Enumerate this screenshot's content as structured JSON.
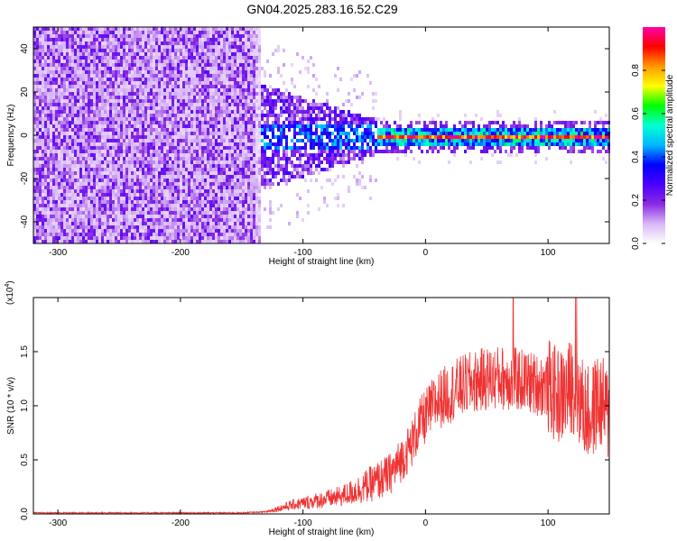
{
  "figure": {
    "title": "GN04.2025.283.16.52.C29"
  },
  "chart_data": [
    {
      "type": "heatmap",
      "title": "GN04.2025.283.16.52.C29",
      "xlabel": "Height of straight line (km)",
      "ylabel": "Frequency (Hz)",
      "xlim": [
        -320,
        150
      ],
      "ylim": [
        -50,
        50
      ],
      "xticks": [
        -300,
        -200,
        -100,
        0,
        100
      ],
      "yticks": [
        -40,
        -20,
        0,
        20,
        40
      ],
      "colorbar": {
        "label": "Normalized spectral amplitude",
        "ticks": [
          0.0,
          0.2,
          0.4,
          0.6,
          0.8
        ],
        "range": [
          0,
          1
        ],
        "colormap": [
          "#ffffff",
          "#d8b8f8",
          "#8a2be2",
          "#4b00ff",
          "#0000ff",
          "#00b8ff",
          "#00ffd0",
          "#00ff00",
          "#ffff00",
          "#ff9900",
          "#ff0000",
          "#ff00aa"
        ]
      },
      "regions": [
        {
          "x": [
            -320,
            -135
          ],
          "freq": [
            -50,
            50
          ],
          "level": "0.05-0.25",
          "description": "broadband noise"
        },
        {
          "x": [
            -140,
            -40
          ],
          "freq": [
            -25,
            25
          ],
          "level": "0.1-0.45",
          "description": "spreading signal"
        },
        {
          "x": [
            -40,
            150
          ],
          "freq": [
            -3,
            3
          ],
          "level": "0.6-1.0",
          "description": "narrow carrier at 0 Hz"
        }
      ]
    },
    {
      "type": "line",
      "xlabel": "Height of straight line (km)",
      "ylabel": "SNR (10 * v/v)",
      "y_multiplier_label": "(x10",
      "y_multiplier_exp": "4",
      "xlim": [
        -320,
        150
      ],
      "ylim": [
        0,
        2.0
      ],
      "xticks": [
        -300,
        -200,
        -100,
        0,
        100
      ],
      "yticks": [
        0.0,
        0.5,
        1.0,
        1.5
      ],
      "series": [
        {
          "color": "#ee3333",
          "x": [
            -320,
            -300,
            -250,
            -200,
            -150,
            -130,
            -120,
            -110,
            -100,
            -90,
            -80,
            -70,
            -60,
            -50,
            -40,
            -35,
            -30,
            -25,
            -20,
            -15,
            -10,
            -5,
            0,
            5,
            10,
            20,
            30,
            40,
            50,
            60,
            70,
            80,
            90,
            100,
            105,
            110,
            115,
            120,
            125,
            130,
            135,
            140,
            145,
            150
          ],
          "y": [
            0.01,
            0.01,
            0.01,
            0.01,
            0.01,
            0.02,
            0.05,
            0.08,
            0.1,
            0.12,
            0.14,
            0.16,
            0.2,
            0.25,
            0.3,
            0.33,
            0.36,
            0.42,
            0.5,
            0.58,
            0.68,
            0.82,
            0.9,
            0.98,
            1.05,
            1.12,
            1.18,
            1.22,
            1.25,
            1.26,
            1.25,
            1.23,
            1.2,
            1.18,
            1.12,
            1.08,
            1.12,
            1.2,
            1.1,
            0.95,
            0.9,
            1.05,
            1.0,
            0.9
          ]
        }
      ]
    }
  ]
}
